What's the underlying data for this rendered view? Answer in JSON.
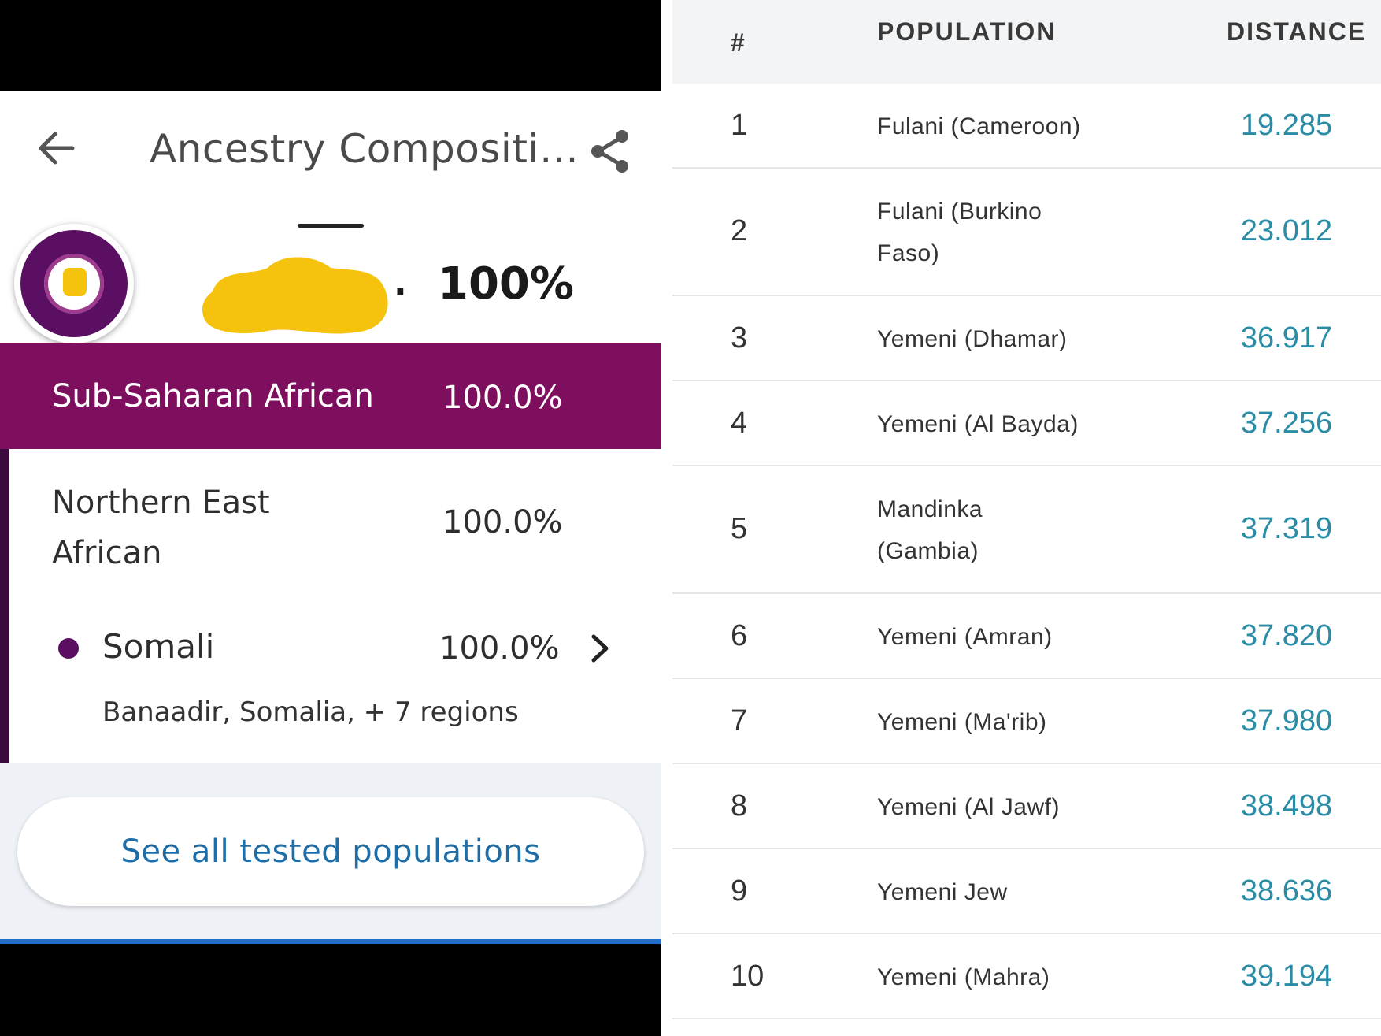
{
  "left_panel": {
    "header": {
      "title": "Ancestry Compositi…",
      "back_icon": "arrow-left-icon",
      "share_icon": "share-icon"
    },
    "summary": {
      "name_ellipsis": ".",
      "percent": "100%"
    },
    "category": {
      "label": "Sub-Saharan African",
      "percent": "100.0%",
      "color": "#7e0f5f"
    },
    "subcategory": {
      "label": "Northern East African",
      "percent": "100.0%"
    },
    "population": {
      "label": "Somali",
      "percent": "100.0%",
      "regions": "Banaadir, Somalia, + 7 regions",
      "dot_color": "#5b0f63"
    },
    "footer": {
      "see_all_label": "See all tested populations"
    }
  },
  "right_panel": {
    "columns": [
      "#",
      "POPULATION",
      "DISTANCE"
    ],
    "rows": [
      {
        "rank": "1",
        "population": "Fulani (Cameroon)",
        "distance": "19.285"
      },
      {
        "rank": "2",
        "population": "Fulani (Burkino Faso)",
        "distance": "23.012"
      },
      {
        "rank": "3",
        "population": "Yemeni (Dhamar)",
        "distance": "36.917"
      },
      {
        "rank": "4",
        "population": "Yemeni (Al Bayda)",
        "distance": "37.256"
      },
      {
        "rank": "5",
        "population": "Mandinka (Gambia)",
        "distance": "37.319"
      },
      {
        "rank": "6",
        "population": "Yemeni (Amran)",
        "distance": "37.820"
      },
      {
        "rank": "7",
        "population": "Yemeni (Ma'rib)",
        "distance": "37.980"
      },
      {
        "rank": "8",
        "population": "Yemeni (Al Jawf)",
        "distance": "38.498"
      },
      {
        "rank": "9",
        "population": "Yemeni Jew",
        "distance": "38.636"
      },
      {
        "rank": "10",
        "population": "Yemeni (Mahra)",
        "distance": "39.194"
      }
    ],
    "distance_color": "#2a8ca6"
  }
}
